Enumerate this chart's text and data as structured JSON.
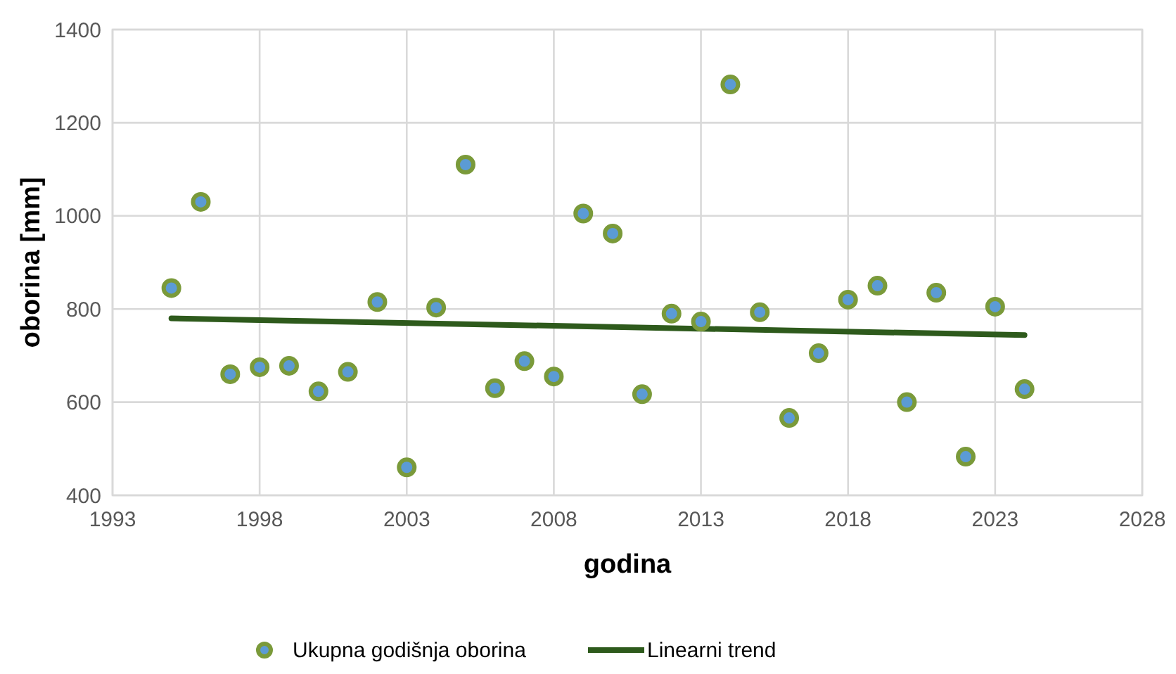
{
  "chart_data": {
    "type": "scatter",
    "xlabel": "godina",
    "ylabel": "oborina  [mm]",
    "xlim": [
      1993,
      2028
    ],
    "xticks": [
      1993,
      1998,
      2003,
      2008,
      2013,
      2018,
      2023,
      2028
    ],
    "ylim": [
      400,
      1400
    ],
    "yticks": [
      400,
      600,
      800,
      1000,
      1200,
      1400
    ],
    "grid": true,
    "legend": "bottom",
    "series": [
      {
        "name": "Ukupna godišnja oborina",
        "marker": "circle",
        "color": "#5b9bd5",
        "x": [
          1995,
          1996,
          1997,
          1998,
          1999,
          2000,
          2001,
          2002,
          2003,
          2004,
          2005,
          2006,
          2007,
          2008,
          2009,
          2010,
          2011,
          2012,
          2013,
          2014,
          2015,
          2016,
          2017,
          2018,
          2019,
          2020,
          2021,
          2022,
          2023,
          2024
        ],
        "values": [
          845,
          1030,
          660,
          675,
          678,
          623,
          665,
          815,
          460,
          803,
          1110,
          630,
          688,
          655,
          1005,
          962,
          617,
          790,
          773,
          1282,
          793,
          566,
          705,
          820,
          850,
          600,
          835,
          483,
          805,
          628
        ]
      },
      {
        "name": "Linearni trend",
        "type": "line",
        "marker": "none",
        "line_style": "solid",
        "color": "#2e5a1c",
        "x": [
          1995,
          2024
        ],
        "values": [
          780,
          744
        ]
      }
    ]
  }
}
